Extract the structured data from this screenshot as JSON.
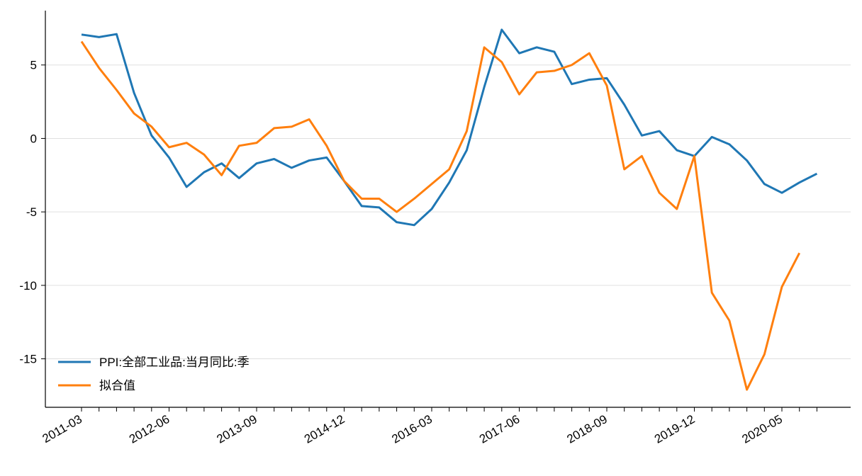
{
  "chart_data": {
    "type": "line",
    "categories": [
      "2011-03",
      null,
      null,
      null,
      null,
      "2012-06",
      null,
      null,
      null,
      null,
      "2013-09",
      null,
      null,
      null,
      null,
      "2014-12",
      null,
      null,
      null,
      null,
      "2016-03",
      null,
      null,
      null,
      null,
      "2017-06",
      null,
      null,
      null,
      null,
      "2018-09",
      null,
      null,
      null,
      null,
      "2019-12",
      null,
      null,
      null,
      null,
      "2020-05",
      null,
      null
    ],
    "series": [
      {
        "name": "PPI:全部工业品:当月同比:季",
        "color": "#1f77b4",
        "values": [
          7.07,
          6.9,
          7.1,
          3.1,
          0.2,
          -1.3,
          -3.3,
          -2.3,
          -1.7,
          -2.7,
          -1.7,
          -1.4,
          -2.0,
          -1.5,
          -1.3,
          -2.9,
          -4.6,
          -4.7,
          -5.7,
          -5.9,
          -4.8,
          -3.0,
          -0.8,
          3.5,
          7.4,
          5.8,
          6.2,
          5.9,
          3.7,
          4.0,
          4.1,
          2.3,
          0.2,
          0.5,
          -0.8,
          -1.2,
          0.1,
          -0.4,
          -1.5,
          -3.1,
          -3.7,
          -3.0,
          -2.4
        ]
      },
      {
        "name": "拟合值",
        "color": "#ff7f0e",
        "values": [
          6.6,
          4.8,
          3.3,
          1.7,
          0.8,
          -0.6,
          -0.3,
          -1.1,
          -2.5,
          -0.5,
          -0.3,
          0.7,
          0.8,
          1.3,
          -0.5,
          -2.9,
          -4.1,
          -4.1,
          -5.0,
          -4.1,
          -3.1,
          -2.1,
          0.5,
          6.2,
          5.2,
          3.0,
          4.5,
          4.6,
          5.0,
          5.8,
          3.6,
          -2.1,
          -1.2,
          -3.7,
          -4.8,
          -1.2,
          -10.5,
          -12.4,
          -17.1,
          -14.7,
          -10.1,
          -7.8,
          null
        ]
      }
    ],
    "ylim": [
      -18.3,
      8.7
    ],
    "yticks": [
      -15,
      -10,
      -5,
      0,
      5
    ],
    "grid": true,
    "legend": "lower left"
  }
}
